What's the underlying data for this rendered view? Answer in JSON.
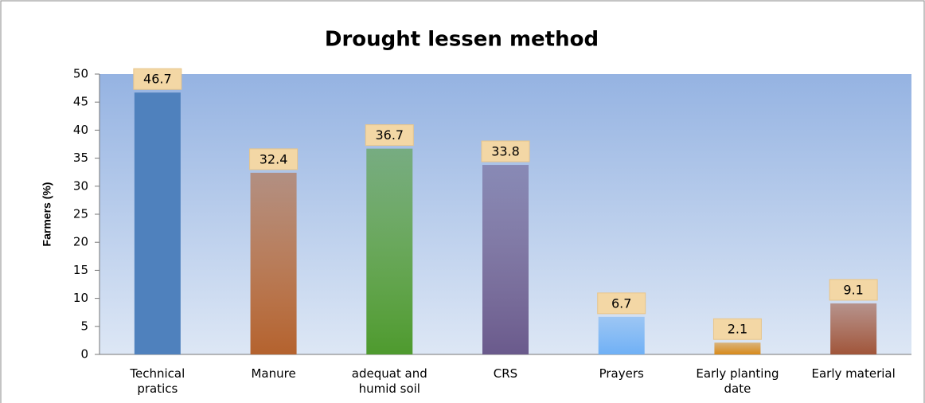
{
  "chart_data": {
    "type": "bar",
    "title": "Drought lessen method",
    "y_label": "Farmers (%)",
    "categories": [
      "Technical\npratics",
      "Manure",
      "adequat and\nhumid soil",
      "CRS",
      "Prayers",
      "Early planting\ndate",
      "Early material"
    ],
    "values": [
      46.7,
      32.4,
      36.7,
      33.8,
      6.7,
      2.1,
      9.1
    ],
    "colors": [
      "#4f81bd",
      "#b4622e",
      "#4e9a2e",
      "#6a5a8c",
      "#6fb0f5",
      "#d88a1a",
      "#a0553a"
    ],
    "ylim": [
      0,
      50
    ],
    "yticks": [
      0,
      5,
      10,
      15,
      20,
      25,
      30,
      35,
      40,
      45,
      50
    ],
    "grid": false
  }
}
